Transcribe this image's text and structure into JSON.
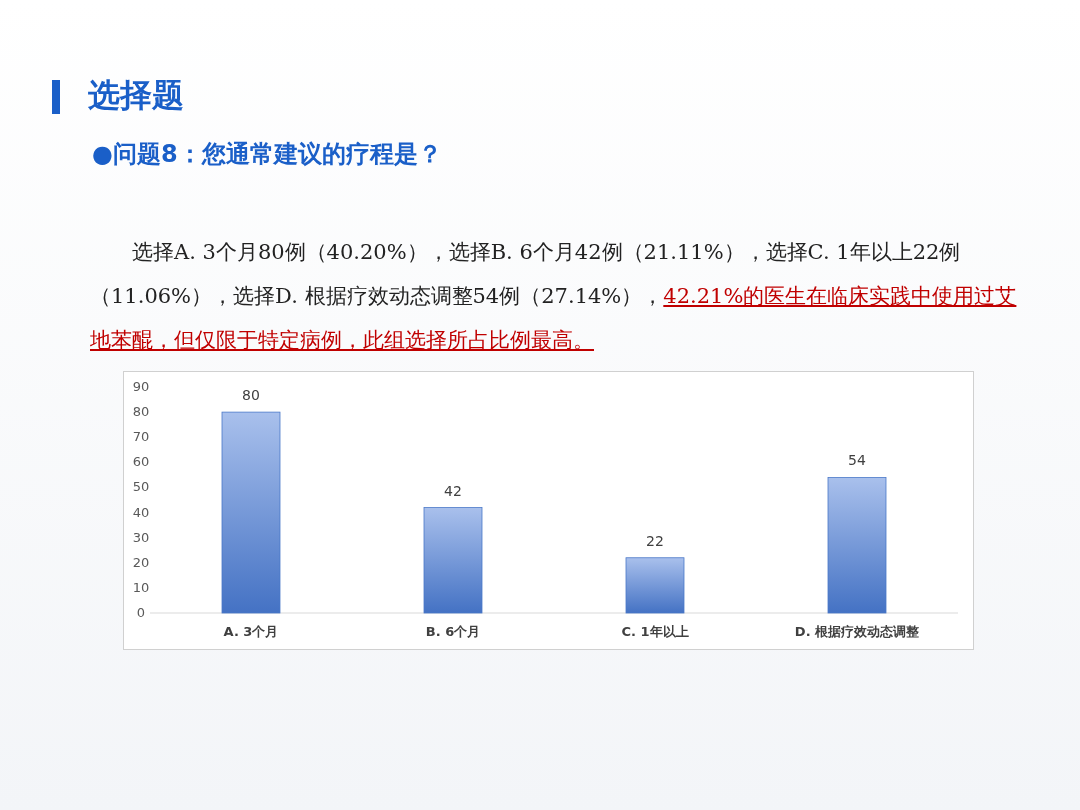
{
  "chart_data": {
    "type": "bar",
    "title": "选择题",
    "subtitle": "●问题8：您通常建议的疗程是？",
    "annotations": [
      "选择A. 3个月80例（40.20%），选择B. 6个月42例（21.11%），选择C. 1年以上22例（11.06%），选择D. 根据疗效动态调整54例（27.14%），",
      "42.21%的医生在临床实践中使用过艾地苯醌，但仅限于特定病例，此组选择所占比例最高。"
    ],
    "categories": [
      "A. 3个月",
      "B. 6个月",
      "C. 1年以上",
      "D. 根据疗效动态调整"
    ],
    "values": [
      80,
      42,
      22,
      54
    ],
    "color": "#4472c4",
    "ylim": [
      0,
      90
    ],
    "yticks": [
      0,
      10,
      20,
      30,
      40,
      50,
      60,
      70,
      80,
      90
    ],
    "grid": false,
    "data_labels": true
  }
}
